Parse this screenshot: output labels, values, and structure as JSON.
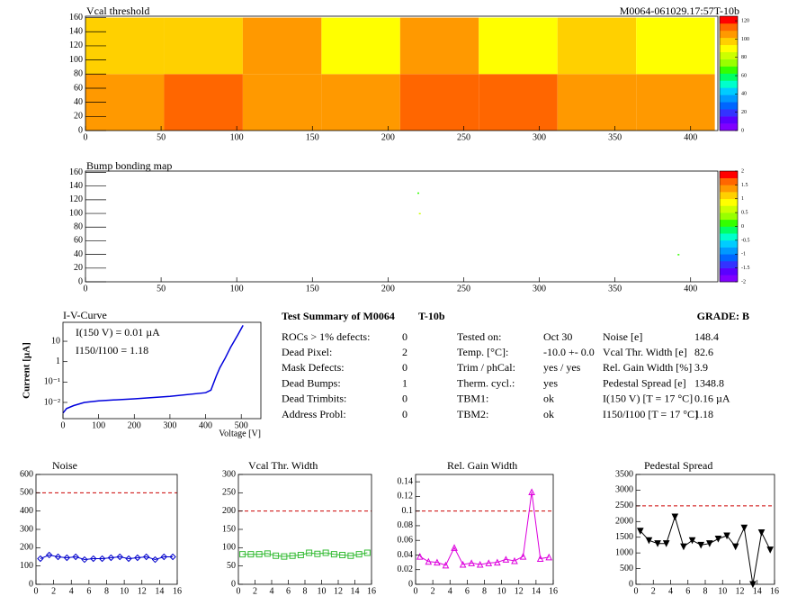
{
  "chart_data": [
    {
      "type": "heatmap",
      "title": "Vcal threshold",
      "subtitle": "M0064-061029.17:57T-10b",
      "x_edges": [
        0,
        52,
        104,
        156,
        208,
        260,
        312,
        364,
        416
      ],
      "y_edges": [
        0,
        80,
        160
      ],
      "values": [
        [
          105,
          112,
          108,
          102,
          110,
          110,
          106,
          102
        ],
        [
          100,
          100,
          102,
          90,
          105,
          92,
          95,
          88
        ]
      ],
      "xlim": [
        0,
        418
      ],
      "ylim": [
        0,
        162
      ],
      "xticks": [
        0,
        50,
        100,
        150,
        200,
        250,
        300,
        350,
        400
      ],
      "yticks": [
        0,
        20,
        40,
        60,
        80,
        100,
        120,
        140,
        160
      ],
      "zlim": [
        0,
        125
      ],
      "zticks": [
        0,
        20,
        40,
        60,
        80,
        100,
        120
      ],
      "palette": [
        "#8000ff",
        "#5a00ff",
        "#3333ff",
        "#0066ff",
        "#0099ff",
        "#00ccff",
        "#00ffcc",
        "#00ff66",
        "#33ff00",
        "#99ff00",
        "#ccff00",
        "#ffff00",
        "#ffd000",
        "#ff9900",
        "#ff6600",
        "#ff0000"
      ]
    },
    {
      "type": "pointmap",
      "title": "Bump bonding map",
      "x": [
        220,
        221,
        392
      ],
      "y": [
        130,
        100,
        40
      ],
      "z": [
        0,
        0.5,
        0
      ],
      "xlim": [
        0,
        418
      ],
      "ylim": [
        0,
        162
      ],
      "xticks": [
        0,
        50,
        100,
        150,
        200,
        250,
        300,
        350,
        400
      ],
      "yticks": [
        0,
        20,
        40,
        60,
        80,
        100,
        120,
        140,
        160
      ],
      "zlim": [
        -2,
        2
      ],
      "zticks": [
        -2,
        -1.5,
        -1,
        -0.5,
        0,
        0.5,
        1,
        1.5,
        2
      ],
      "palette": [
        "#8000ff",
        "#5a00ff",
        "#3333ff",
        "#0066ff",
        "#0099ff",
        "#00ccff",
        "#00ffcc",
        "#00ff66",
        "#33ff00",
        "#99ff00",
        "#ccff00",
        "#ffff00",
        "#ffd000",
        "#ff9900",
        "#ff6600",
        "#ff0000"
      ]
    },
    {
      "type": "line",
      "title": "I-V-Curve",
      "xlabel": "Voltage [V]",
      "ylabel": "Current [µA]",
      "color": "#0000dd",
      "annotations": [
        "I(150 V) = 0.01 µA",
        "I150/I100 =  1.18"
      ],
      "x": [
        0,
        10,
        30,
        60,
        100,
        200,
        300,
        400,
        415,
        430,
        440,
        455,
        470,
        490,
        505
      ],
      "y": [
        0.003,
        0.005,
        0.007,
        0.01,
        0.012,
        0.015,
        0.02,
        0.03,
        0.04,
        0.2,
        0.5,
        1.5,
        5,
        20,
        60
      ],
      "xlim": [
        0,
        555
      ],
      "ylim": [
        0.0016,
        85
      ],
      "ylog": true,
      "xticks": [
        0,
        100,
        200,
        300,
        400,
        500
      ],
      "yticks": [
        {
          "value": 0.01,
          "label": "10⁻²"
        },
        {
          "value": 0.1,
          "label": "10⁻¹"
        },
        1,
        10
      ]
    },
    {
      "type": "markers",
      "title": "Noise",
      "marker": "diamond",
      "color": "#0000cc",
      "threshold": 500,
      "x": [
        0.5,
        1.5,
        2.5,
        3.5,
        4.5,
        5.5,
        6.5,
        7.5,
        8.5,
        9.5,
        10.5,
        11.5,
        12.5,
        13.5,
        14.5,
        15.5
      ],
      "values": [
        140,
        160,
        150,
        145,
        150,
        135,
        140,
        140,
        145,
        150,
        140,
        145,
        150,
        135,
        150,
        150
      ],
      "xlim": [
        0,
        16
      ],
      "ylim": [
        0,
        600
      ],
      "xticks": [
        0,
        2,
        4,
        6,
        8,
        10,
        12,
        14,
        16
      ],
      "yticks": [
        0,
        100,
        200,
        300,
        400,
        500,
        600
      ]
    },
    {
      "type": "markers",
      "title": "Vcal Thr. Width",
      "marker": "square",
      "color": "#33bb33",
      "threshold": 200,
      "x": [
        0.5,
        1.5,
        2.5,
        3.5,
        4.5,
        5.5,
        6.5,
        7.5,
        8.5,
        9.5,
        10.5,
        11.5,
        12.5,
        13.5,
        14.5,
        15.5
      ],
      "values": [
        82,
        82,
        82,
        84,
        78,
        76,
        78,
        80,
        86,
        83,
        86,
        82,
        80,
        78,
        82,
        86
      ],
      "xlim": [
        0,
        16
      ],
      "ylim": [
        0,
        300
      ],
      "xticks": [
        0,
        2,
        4,
        6,
        8,
        10,
        12,
        14,
        16
      ],
      "yticks": [
        0,
        50,
        100,
        150,
        200,
        250,
        300
      ]
    },
    {
      "type": "markers",
      "title": "Rel. Gain Width",
      "marker": "triangle",
      "color": "#dd00dd",
      "threshold": 0.1,
      "x": [
        0.5,
        1.5,
        2.5,
        3.5,
        4.5,
        5.5,
        6.5,
        7.5,
        8.5,
        9.5,
        10.5,
        11.5,
        12.5,
        13.5,
        14.5,
        15.5
      ],
      "values": [
        0.038,
        0.031,
        0.03,
        0.026,
        0.05,
        0.027,
        0.029,
        0.027,
        0.029,
        0.03,
        0.034,
        0.032,
        0.038,
        0.126,
        0.035,
        0.037
      ],
      "xlim": [
        0,
        16
      ],
      "ylim": [
        0,
        0.15
      ],
      "xticks": [
        0,
        2,
        4,
        6,
        8,
        10,
        12,
        14,
        16
      ],
      "yticks": [
        0,
        0.02,
        0.04,
        0.06,
        0.08,
        0.1,
        0.12,
        0.14
      ]
    },
    {
      "type": "markers",
      "title": "Pedestal Spread",
      "marker": "triangle-down",
      "color": "#000000",
      "threshold": 2500,
      "x": [
        0.5,
        1.5,
        2.5,
        3.5,
        4.5,
        5.5,
        6.5,
        7.5,
        8.5,
        9.5,
        10.5,
        11.5,
        12.5,
        13.5,
        14.5,
        15.5
      ],
      "values": [
        1700,
        1400,
        1300,
        1300,
        2150,
        1200,
        1400,
        1250,
        1300,
        1450,
        1550,
        1200,
        1800,
        0,
        1650,
        1100
      ],
      "xlim": [
        0,
        16
      ],
      "ylim": [
        0,
        3500
      ],
      "xticks": [
        0,
        2,
        4,
        6,
        8,
        10,
        12,
        14,
        16
      ],
      "yticks": [
        0,
        500,
        1000,
        1500,
        2000,
        2500,
        3000,
        3500
      ]
    }
  ],
  "summary": {
    "title": "Test Summary of M0064",
    "tag": "T-10b",
    "grade": "GRADE:  B",
    "col1": [
      [
        "ROCs > 1% defects:",
        "0"
      ],
      [
        "Dead Pixel:",
        "2"
      ],
      [
        "Mask Defects:",
        "0"
      ],
      [
        "Dead Bumps:",
        "1"
      ],
      [
        "Dead Trimbits:",
        "0"
      ],
      [
        "Address Probl:",
        "0"
      ]
    ],
    "col2": [
      [
        "Tested on:",
        "Oct 30"
      ],
      [
        "Temp. [°C]:",
        "-10.0 +- 0.0"
      ],
      [
        "Trim / phCal:",
        "yes / yes"
      ],
      [
        "Therm. cycl.:",
        "yes"
      ],
      [
        "TBM1:",
        "ok"
      ],
      [
        "TBM2:",
        "ok"
      ]
    ],
    "col3": [
      [
        "Noise [e]",
        "148.4"
      ],
      [
        "Vcal Thr. Width [e]",
        "82.6"
      ],
      [
        "Rel. Gain Width [%]",
        "3.9"
      ],
      [
        "Pedestal Spread [e]",
        "1348.8"
      ],
      [
        "I(150 V) [T = 17 °C]",
        "0.16 µA"
      ],
      [
        "I150/I100  [T = 17 °C]",
        "1.18"
      ]
    ]
  }
}
